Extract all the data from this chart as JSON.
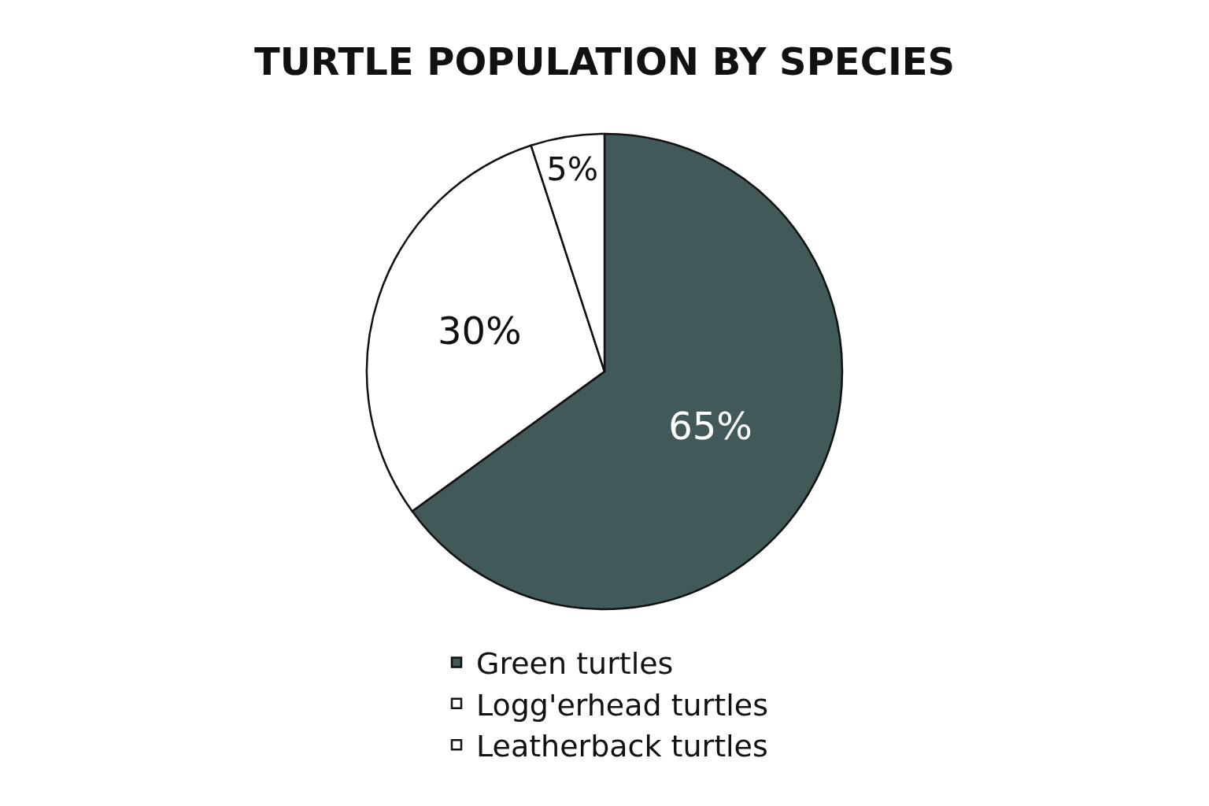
{
  "chart_data": {
    "type": "pie",
    "title": "TURTLE POPULATION BY SPECIES",
    "categories": [
      "Green turtles",
      "Logg'erhead turtles",
      "Leatherback turtles"
    ],
    "values": [
      65,
      30,
      5
    ],
    "colors": [
      "#42595a",
      "#ffffff",
      "#ffffff"
    ],
    "value_labels": [
      "65%",
      "30%",
      "5%"
    ],
    "legend": "bottom"
  }
}
